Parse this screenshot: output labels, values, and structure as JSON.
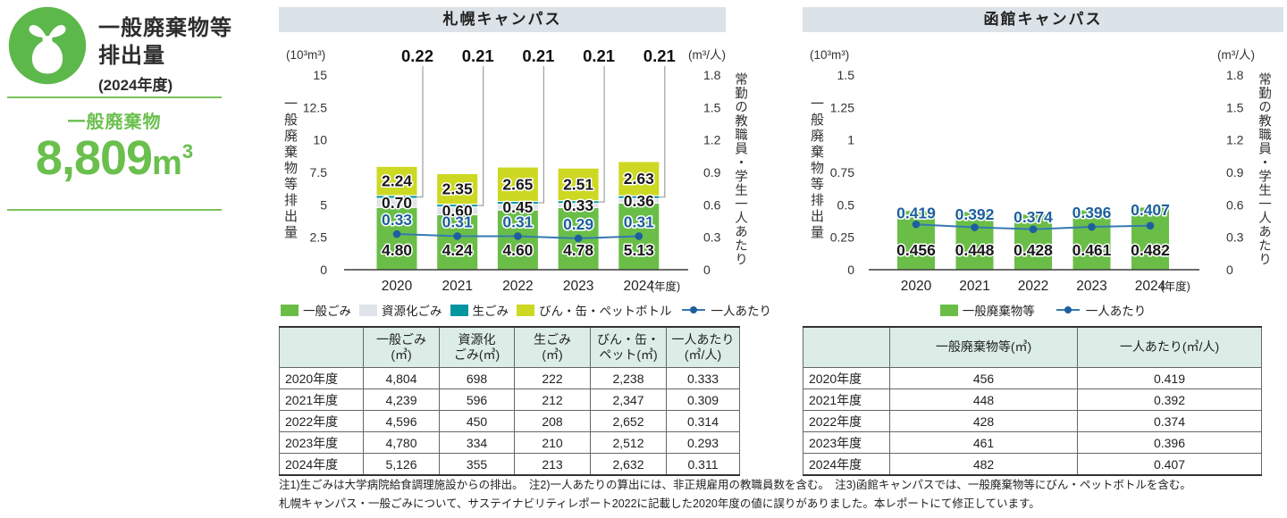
{
  "summary": {
    "icon": "trash-bag-icon",
    "title_line1": "一般廃棄物等",
    "title_line2": "排出量",
    "fiscal_year": "(2024年度)",
    "metric_label": "一般廃棄物",
    "metric_value": "8,809",
    "metric_unit_base": "m",
    "metric_unit_exp": "3",
    "accent_color": "#6abf4d"
  },
  "chart_data": [
    {
      "id": "sapporo",
      "type": "stacked-bar-line",
      "title": "札幌キャンパス",
      "categories": [
        "2020",
        "2021",
        "2022",
        "2023",
        "2024"
      ],
      "category_suffix": "(年度)",
      "left_axis": {
        "unit": "(10³m³)",
        "title": "一般廃棄物等排出量",
        "max": 15,
        "ticks": [
          0,
          2.5,
          5,
          7.5,
          10,
          12.5,
          15
        ],
        "tick_labels": [
          "0",
          "2.5",
          "5",
          "7.5",
          "10",
          "12.5",
          "15"
        ]
      },
      "right_axis": {
        "unit": "(m³/人)",
        "title": "常勤の教職員・学生一人あたり",
        "max": 1.8,
        "ticks": [
          0,
          0.3,
          0.6,
          0.9,
          1.2,
          1.5,
          1.8
        ],
        "tick_labels": [
          "0",
          "0.3",
          "0.6",
          "0.9",
          "1.2",
          "1.5",
          "1.8"
        ]
      },
      "series": [
        {
          "name": "一般ごみ",
          "color": "#6abe48",
          "values": [
            4.8,
            4.24,
            4.6,
            4.78,
            5.13
          ],
          "labels": [
            "4.80",
            "4.24",
            "4.60",
            "4.78",
            "5.13"
          ],
          "label_style": "bottom"
        },
        {
          "name": "資源化ごみ",
          "color": "#dee4e9",
          "values": [
            0.7,
            0.6,
            0.45,
            0.33,
            0.36
          ],
          "labels": [
            "0.70",
            "0.60",
            "0.45",
            "0.33",
            "0.36"
          ],
          "label_style": "segment"
        },
        {
          "name": "生ごみ",
          "color": "#0096a0",
          "values": [
            0.22,
            0.21,
            0.21,
            0.21,
            0.21
          ],
          "labels": [
            "0.22",
            "0.21",
            "0.21",
            "0.21",
            "0.21"
          ],
          "label_style": "callout"
        },
        {
          "name": "びん・缶・ペットボトル",
          "color": "#cdd822",
          "values": [
            2.24,
            2.35,
            2.65,
            2.51,
            2.63
          ],
          "labels": [
            "2.24",
            "2.35",
            "2.65",
            "2.51",
            "2.63"
          ],
          "label_style": "segment"
        }
      ],
      "line_series": {
        "name": "一人あたり",
        "color": "#1d5f9e",
        "stroke_color": "#3579b1",
        "values": [
          0.33,
          0.31,
          0.31,
          0.29,
          0.31
        ],
        "labels": [
          "0.33",
          "0.31",
          "0.31",
          "0.29",
          "0.31"
        ]
      }
    },
    {
      "id": "hakodate",
      "type": "bar-line",
      "title": "函館キャンパス",
      "categories": [
        "2020",
        "2021",
        "2022",
        "2023",
        "2024"
      ],
      "category_suffix": "(年度)",
      "left_axis": {
        "unit": "(10³m³)",
        "title": "一般廃棄物等排出量",
        "max": 1.5,
        "ticks": [
          0,
          0.25,
          0.5,
          0.75,
          1,
          1.25,
          1.5
        ],
        "tick_labels": [
          "0",
          "0.25",
          "0.5",
          "0.75",
          "1",
          "1.25",
          "1.5"
        ]
      },
      "right_axis": {
        "unit": "(m³/人)",
        "title": "常勤の教職員・学生一人あたり",
        "max": 1.8,
        "ticks": [
          0,
          0.3,
          0.6,
          0.9,
          1.2,
          1.5,
          1.8
        ],
        "tick_labels": [
          "0",
          "0.3",
          "0.6",
          "0.9",
          "1.2",
          "1.5",
          "1.8"
        ]
      },
      "series": [
        {
          "name": "一般廃棄物等",
          "color": "#6abe48",
          "values": [
            0.456,
            0.448,
            0.428,
            0.461,
            0.482
          ],
          "labels": [
            "0.456",
            "0.448",
            "0.428",
            "0.461",
            "0.482"
          ],
          "label_style": "bottom"
        }
      ],
      "line_series": {
        "name": "一人あたり",
        "color": "#1d5f9e",
        "stroke_color": "#3579b1",
        "values": [
          0.419,
          0.392,
          0.374,
          0.396,
          0.407
        ],
        "labels": [
          "0.419",
          "0.392",
          "0.374",
          "0.396",
          "0.407"
        ]
      }
    }
  ],
  "tables": [
    {
      "id": "sapporo",
      "headers": [
        "",
        "一般ごみ\n(㎥)",
        "資源化\nごみ(㎥)",
        "生ごみ\n(㎥)",
        "びん・缶・\nペット(㎥)",
        "一人あたり\n(㎥/人)"
      ],
      "rows": [
        [
          "2020年度",
          "4,804",
          "698",
          "222",
          "2,238",
          "0.333"
        ],
        [
          "2021年度",
          "4,239",
          "596",
          "212",
          "2,347",
          "0.309"
        ],
        [
          "2022年度",
          "4,596",
          "450",
          "208",
          "2,652",
          "0.314"
        ],
        [
          "2023年度",
          "4,780",
          "334",
          "210",
          "2,512",
          "0.293"
        ],
        [
          "2024年度",
          "5,126",
          "355",
          "213",
          "2,632",
          "0.311"
        ]
      ]
    },
    {
      "id": "hakodate",
      "headers": [
        "",
        "一般廃棄物等(㎥)",
        "一人あたり(㎥/人)"
      ],
      "rows": [
        [
          "2020年度",
          "456",
          "0.419"
        ],
        [
          "2021年度",
          "448",
          "0.392"
        ],
        [
          "2022年度",
          "428",
          "0.374"
        ],
        [
          "2023年度",
          "461",
          "0.396"
        ],
        [
          "2024年度",
          "482",
          "0.407"
        ]
      ]
    }
  ],
  "footnotes": {
    "line1": "注1)生ごみは大学病院給食調理施設からの排出。　注2)一人あたりの算出には、非正規雇用の教職員数を含む。　注3)函館キャンパスでは、一般廃棄物等にびん・ペットボトルを含む。",
    "line2": "札幌キャンパス・一般ごみについて、サステイナビリティレポート2022に記載した2020年度の値に誤りがありました。本レポートにて修正しています。"
  }
}
